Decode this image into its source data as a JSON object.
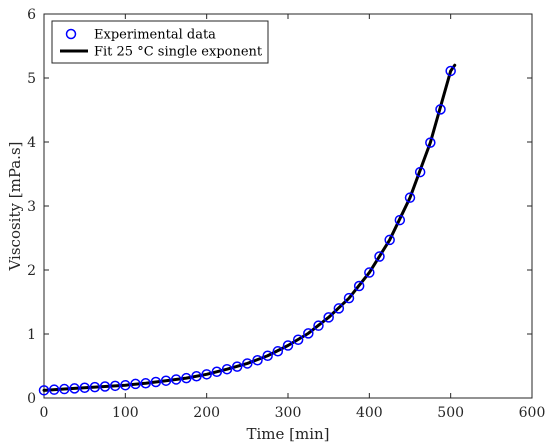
{
  "chart_data": {
    "type": "scatter",
    "xlabel": "Time [min]",
    "ylabel": "Viscosity [mPa.s]",
    "xlim": [
      0,
      600
    ],
    "ylim": [
      0,
      6
    ],
    "xticks": [
      0,
      100,
      200,
      300,
      400,
      500,
      600
    ],
    "yticks": [
      0,
      1,
      2,
      3,
      4,
      5,
      6
    ],
    "xtick_labels": [
      "0",
      "100",
      "200",
      "300",
      "400",
      "500",
      "600"
    ],
    "ytick_labels": [
      "0",
      "1",
      "2",
      "3",
      "4",
      "5",
      "6"
    ],
    "grid": false,
    "legend_position": "top-left",
    "series": [
      {
        "name": "Experimental data",
        "type": "scatter",
        "marker": "circle-open",
        "color": "#0000ff",
        "x": [
          0,
          12.5,
          25,
          37.5,
          50,
          62.5,
          75,
          87.5,
          100,
          112.5,
          125,
          137.5,
          150,
          162.5,
          175,
          187.5,
          200,
          212.5,
          225,
          237.5,
          250,
          262.5,
          275,
          287.5,
          300,
          312.5,
          325,
          337.5,
          350,
          362.5,
          375,
          387.5,
          400,
          412.5,
          425,
          437.5,
          450,
          462.5,
          475,
          487.5,
          500
        ],
        "y": [
          0.12,
          0.13,
          0.14,
          0.15,
          0.16,
          0.17,
          0.18,
          0.19,
          0.2,
          0.22,
          0.23,
          0.25,
          0.27,
          0.29,
          0.31,
          0.34,
          0.37,
          0.41,
          0.45,
          0.49,
          0.54,
          0.59,
          0.66,
          0.73,
          0.82,
          0.91,
          1.01,
          1.13,
          1.26,
          1.4,
          1.56,
          1.75,
          1.96,
          2.21,
          2.47,
          2.78,
          3.13,
          3.53,
          3.99,
          4.51,
          5.11
        ]
      },
      {
        "name": "Fit 25 °C single exponent",
        "type": "line",
        "color": "#000000",
        "x": [
          0,
          25,
          50,
          75,
          100,
          125,
          150,
          175,
          200,
          225,
          250,
          275,
          300,
          325,
          350,
          375,
          400,
          425,
          450,
          475,
          500,
          505
        ],
        "y": [
          0.12,
          0.14,
          0.16,
          0.18,
          0.2,
          0.23,
          0.27,
          0.31,
          0.37,
          0.45,
          0.54,
          0.66,
          0.82,
          1.01,
          1.26,
          1.56,
          1.96,
          2.47,
          3.13,
          3.99,
          5.11,
          5.2
        ]
      }
    ]
  }
}
